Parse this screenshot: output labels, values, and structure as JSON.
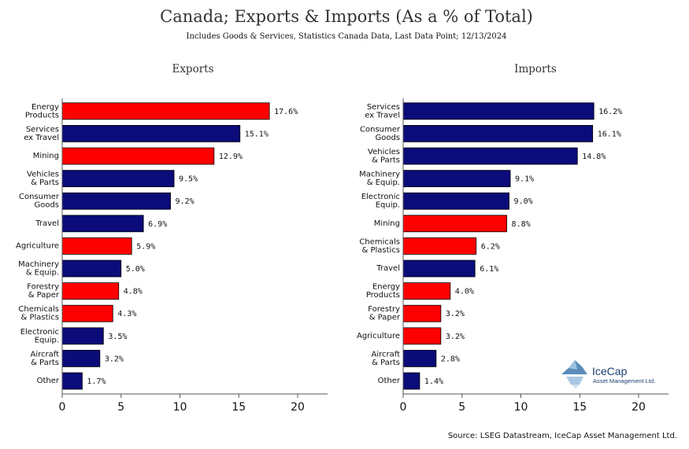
{
  "title": "Canada; Exports & Imports (As a % of Total)",
  "subtitle": "Includes Goods & Services, Statistics Canada Data, Last Data Point; 12/13/2024",
  "source": "Source: LSEG Datastream, IceCap Asset Management Ltd.",
  "logo": {
    "name": "IceCap",
    "sub": "Asset Management Ltd."
  },
  "colors": {
    "red": "#ff0000",
    "navy": "#0b0b7a",
    "axis": "#555555"
  },
  "chart_data": [
    {
      "type": "bar",
      "orientation": "horizontal",
      "title": "Exports",
      "xlim": [
        0,
        23
      ],
      "xticks": [
        0,
        5,
        10,
        15,
        20
      ],
      "value_suffix": "%",
      "categories": [
        [
          "Energy",
          "Products"
        ],
        [
          "Services",
          "ex Travel"
        ],
        [
          "Mining"
        ],
        [
          "Vehicles",
          "& Parts"
        ],
        [
          "Consumer",
          "Goods"
        ],
        [
          "Travel"
        ],
        [
          "Agriculture"
        ],
        [
          "Machinery",
          "& Equip."
        ],
        [
          "Forestry",
          "& Paper"
        ],
        [
          "Chemicals",
          "& Plastics"
        ],
        [
          "Electronic",
          "Equip."
        ],
        [
          "Aircraft",
          "& Parts"
        ],
        [
          "Other"
        ]
      ],
      "values": [
        17.6,
        15.1,
        12.9,
        9.5,
        9.2,
        6.9,
        5.9,
        5.0,
        4.8,
        4.3,
        3.5,
        3.2,
        1.7
      ],
      "colors": [
        "red",
        "navy",
        "red",
        "navy",
        "navy",
        "navy",
        "red",
        "navy",
        "red",
        "red",
        "navy",
        "navy",
        "navy"
      ]
    },
    {
      "type": "bar",
      "orientation": "horizontal",
      "title": "Imports",
      "xlim": [
        0,
        23
      ],
      "xticks": [
        0,
        5,
        10,
        15,
        20
      ],
      "value_suffix": "%",
      "categories": [
        [
          "Services",
          "ex Travel"
        ],
        [
          "Consumer",
          "Goods"
        ],
        [
          "Vehicles",
          "& Parts"
        ],
        [
          "Machinery",
          "& Equip."
        ],
        [
          "Electronic",
          "Equip."
        ],
        [
          "Mining"
        ],
        [
          "Chemicals",
          "& Plastics"
        ],
        [
          "Travel"
        ],
        [
          "Energy",
          "Products"
        ],
        [
          "Forestry",
          "& Paper"
        ],
        [
          "Agriculture"
        ],
        [
          "Aircraft",
          "& Parts"
        ],
        [
          "Other"
        ]
      ],
      "values": [
        16.2,
        16.1,
        14.8,
        9.1,
        9.0,
        8.8,
        6.2,
        6.1,
        4.0,
        3.2,
        3.2,
        2.8,
        1.4
      ],
      "colors": [
        "navy",
        "navy",
        "navy",
        "navy",
        "navy",
        "red",
        "red",
        "navy",
        "red",
        "red",
        "red",
        "navy",
        "navy"
      ]
    }
  ]
}
